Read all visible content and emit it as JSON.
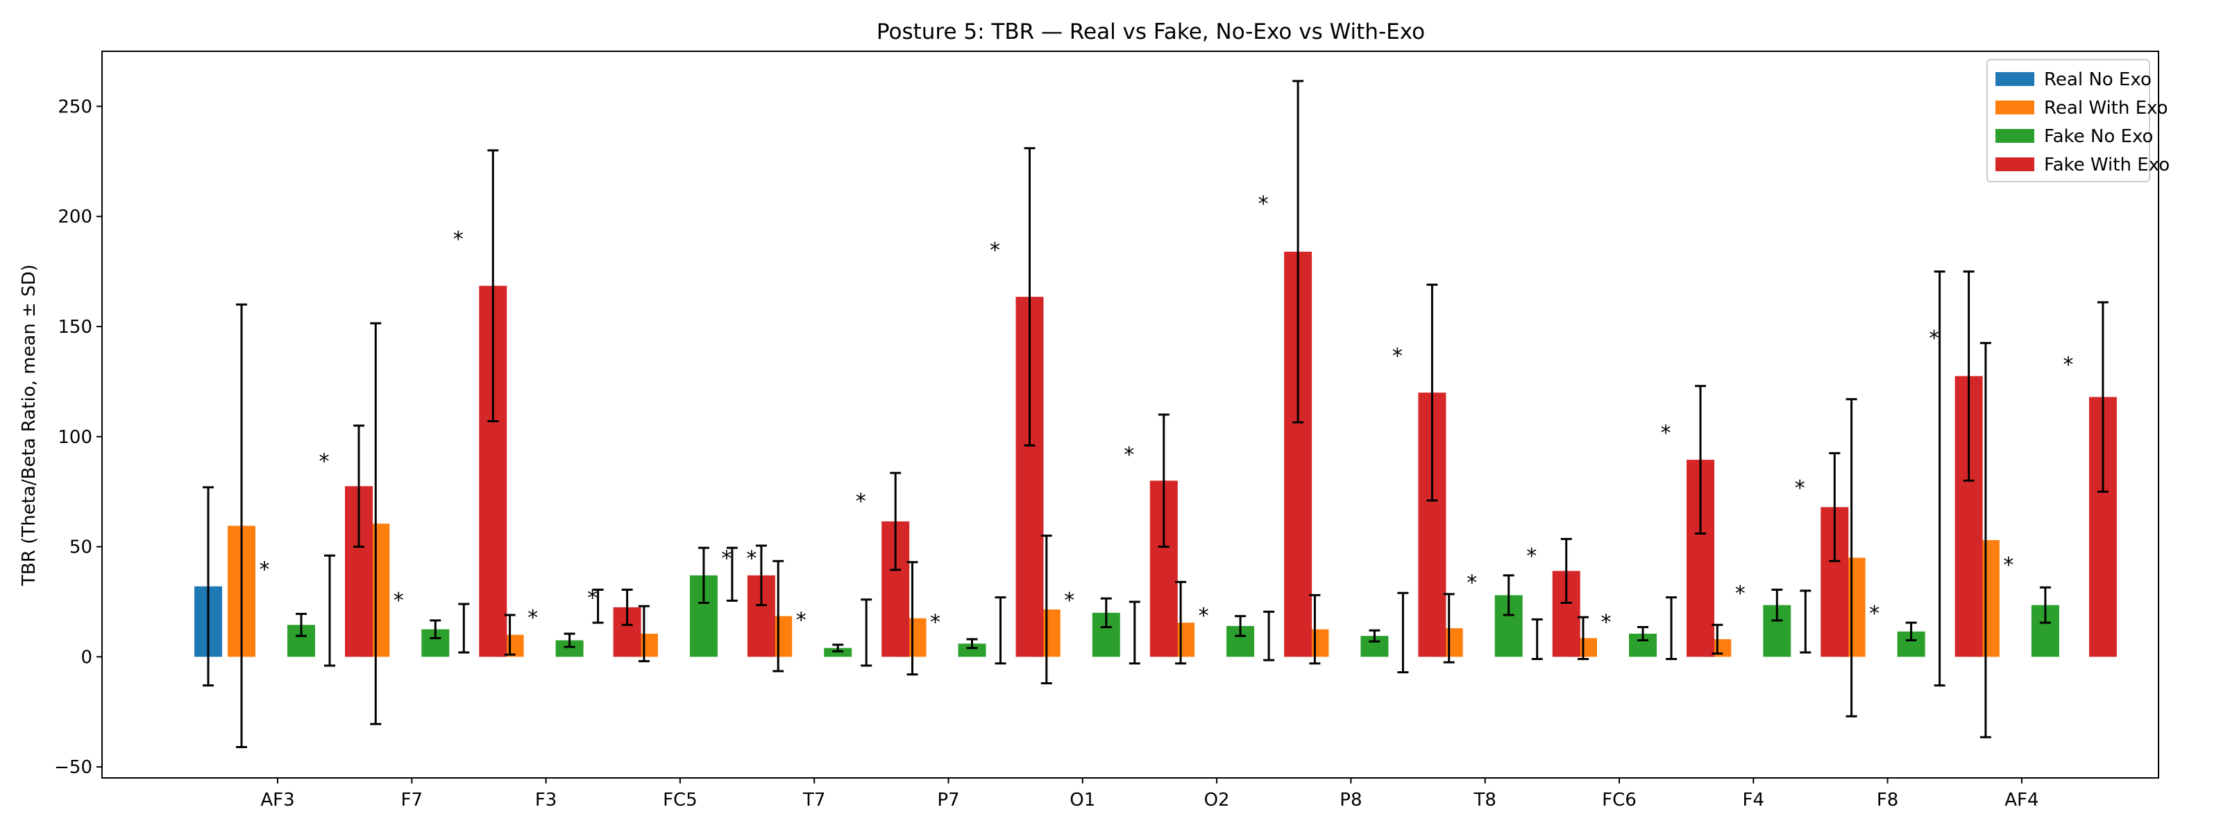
{
  "chart_data": {
    "type": "bar",
    "title": "Posture 5: TBR — Real vs Fake, No-Exo vs With-Exo",
    "xlabel": "",
    "ylabel": "TBR (Theta/Beta Ratio, mean ± SD)",
    "ylim": [
      -55,
      275
    ],
    "yticks": [
      -50,
      0,
      50,
      100,
      150,
      200,
      250
    ],
    "categories": [
      "AF3",
      "F7",
      "F3",
      "FC5",
      "T7",
      "P7",
      "O1",
      "O2",
      "P8",
      "T8",
      "FC6",
      "F4",
      "F8",
      "AF4"
    ],
    "legend_position": "top-right",
    "series": [
      {
        "name": "Real No Exo",
        "color": "#1f77b4",
        "values": [
          32,
          null,
          null,
          null,
          null,
          null,
          null,
          null,
          null,
          null,
          null,
          null,
          null,
          null
        ],
        "sd": [
          45,
          null,
          null,
          null,
          null,
          null,
          null,
          null,
          null,
          null,
          null,
          null,
          null,
          null
        ]
      },
      {
        "name": "Real With Exo",
        "color": "#ff7f0e",
        "values": [
          59.5,
          60.5,
          10,
          10.5,
          18.5,
          17.5,
          21.5,
          15.5,
          12.5,
          13,
          8.5,
          8,
          45,
          53
        ],
        "sd": [
          100.5,
          91,
          9,
          12.5,
          25,
          25.5,
          33.5,
          18.5,
          15.5,
          15.5,
          9.5,
          6.5,
          72,
          89.5
        ]
      },
      {
        "name": "Fake No Exo",
        "color": "#2ca02c",
        "values": [
          14.5,
          12.5,
          7.5,
          37,
          4,
          6,
          20,
          14,
          9.5,
          28,
          10.5,
          23.5,
          11.5,
          23.5
        ],
        "sd": [
          5,
          4,
          3,
          12.5,
          1.5,
          2,
          6.5,
          4.5,
          2.5,
          9,
          3,
          7,
          4,
          8
        ]
      },
      {
        "name": "Fake With Exo",
        "color": "#d62728",
        "values": [
          77.5,
          168.5,
          22.5,
          37,
          61.5,
          163.5,
          80,
          184,
          120,
          39,
          89.5,
          68,
          127.5,
          118
        ],
        "sd": [
          27.5,
          61.5,
          8,
          13.5,
          22,
          67.5,
          30,
          77.5,
          49,
          14.5,
          33.5,
          24.5,
          47.5,
          43
        ]
      }
    ],
    "extra_error_bars": [
      {
        "after": "AF3",
        "mean": 21,
        "sd": 25
      },
      {
        "after": "F7",
        "mean": 13,
        "sd": 11
      },
      {
        "after": "F3",
        "mean": 23,
        "sd": 7.5
      },
      {
        "after": "FC5",
        "mean": 37.5,
        "sd": 12
      },
      {
        "after": "T7",
        "mean": 11,
        "sd": 15
      },
      {
        "after": "P7",
        "mean": 12,
        "sd": 15
      },
      {
        "after": "O1",
        "mean": 11,
        "sd": 14
      },
      {
        "after": "O2",
        "mean": 9.5,
        "sd": 11
      },
      {
        "after": "P8",
        "mean": 11,
        "sd": 18
      },
      {
        "after": "T8",
        "mean": 8,
        "sd": 9
      },
      {
        "after": "FC6",
        "mean": 13,
        "sd": 14
      },
      {
        "after": "F4",
        "mean": 16,
        "sd": 14
      },
      {
        "after": "F8",
        "mean": 81,
        "sd": 94
      }
    ],
    "significance_markers": [
      {
        "near": "AF3",
        "series": "Real With Exo",
        "y": 40
      },
      {
        "near": "AF3",
        "series": "Fake No Exo",
        "y": 89
      },
      {
        "near": "F7",
        "series": "Real With Exo",
        "y": 26
      },
      {
        "near": "F7",
        "series": "Fake No Exo",
        "y": 190
      },
      {
        "near": "F3",
        "series": "Real With Exo",
        "y": 18
      },
      {
        "near": "F3",
        "series": "Fake No Exo",
        "y": 27
      },
      {
        "near": "FC5",
        "series": "Fake No Exo",
        "y": 45
      },
      {
        "near": "FC5",
        "series": "Fake No Exo",
        "y": 45
      },
      {
        "near": "T7",
        "series": "Real With Exo",
        "y": 17
      },
      {
        "near": "T7",
        "series": "Fake No Exo",
        "y": 71
      },
      {
        "near": "P7",
        "series": "Real With Exo",
        "y": 16
      },
      {
        "near": "P7",
        "series": "Fake No Exo",
        "y": 185
      },
      {
        "near": "O1",
        "series": "Real With Exo",
        "y": 26
      },
      {
        "near": "O1",
        "series": "Fake No Exo",
        "y": 92
      },
      {
        "near": "O2",
        "series": "Real With Exo",
        "y": 19
      },
      {
        "near": "O2",
        "series": "Fake No Exo",
        "y": 206
      },
      {
        "near": "P8",
        "series": "Fake No Exo",
        "y": 137
      },
      {
        "near": "T8",
        "series": "Real With Exo",
        "y": 34
      },
      {
        "near": "T8",
        "series": "Fake No Exo",
        "y": 46
      },
      {
        "near": "FC6",
        "series": "Real With Exo",
        "y": 16
      },
      {
        "near": "FC6",
        "series": "Fake No Exo",
        "y": 102
      },
      {
        "near": "F4",
        "series": "Real With Exo",
        "y": 29
      },
      {
        "near": "F4",
        "series": "Fake No Exo",
        "y": 77
      },
      {
        "near": "F8",
        "series": "Real With Exo",
        "y": 20
      },
      {
        "near": "F8",
        "series": "Fake No Exo",
        "y": 145
      },
      {
        "near": "AF4",
        "series": "Real With Exo",
        "y": 42
      },
      {
        "near": "AF4",
        "series": "Fake No Exo",
        "y": 133
      }
    ],
    "grid": false,
    "star_symbol": "*"
  }
}
